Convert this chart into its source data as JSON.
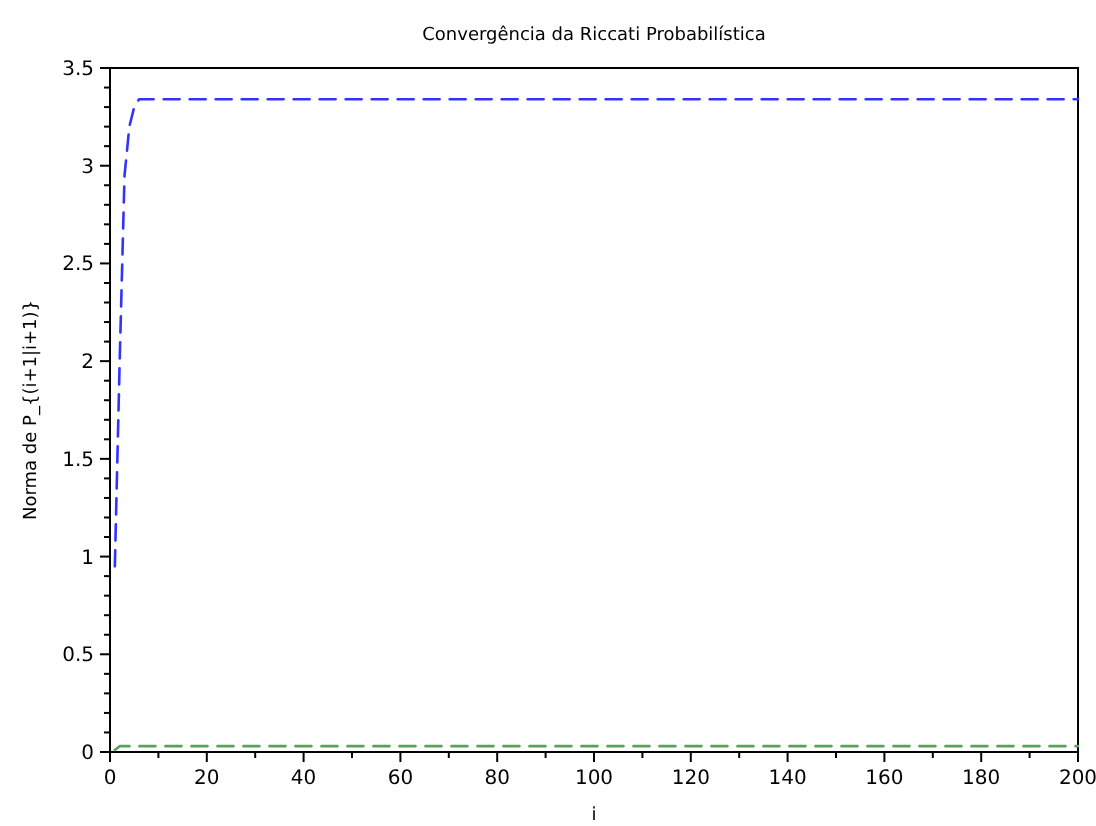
{
  "chart_data": {
    "type": "line",
    "title": "Convergência da Riccati Probabilística",
    "xlabel": "i",
    "ylabel": "Norma de P_{(i+1|i+1)}",
    "series": [
      {
        "color": "#3333ff",
        "x": [
          1,
          2,
          3,
          4,
          5,
          6,
          200
        ],
        "values": [
          0.95,
          2.0,
          2.95,
          3.2,
          3.3,
          3.34,
          3.34
        ]
      },
      {
        "color": "#5aa05a",
        "x": [
          1,
          2,
          200
        ],
        "values": [
          0.01,
          0.03,
          0.03
        ]
      }
    ],
    "xlim": [
      0,
      200
    ],
    "ylim": [
      0,
      3.5
    ],
    "xticks": [
      0,
      {
        "value": 10,
        "label": null
      },
      20,
      {
        "value": 30,
        "label": null
      },
      40,
      {
        "value": 50,
        "label": null
      },
      60,
      {
        "value": 70,
        "label": null
      },
      80,
      {
        "value": 90,
        "label": null
      },
      100,
      {
        "value": 110,
        "label": null
      },
      120,
      {
        "value": 130,
        "label": null
      },
      140,
      {
        "value": 150,
        "label": null
      },
      160,
      {
        "value": 170,
        "label": null
      },
      180,
      {
        "value": 190,
        "label": null
      },
      200
    ],
    "yticks": [
      0,
      {
        "value": 0.1,
        "label": null
      },
      {
        "value": 0.2,
        "label": null
      },
      {
        "value": 0.3,
        "label": null
      },
      {
        "value": 0.4,
        "label": null
      },
      0.5,
      {
        "value": 0.6,
        "label": null
      },
      {
        "value": 0.7,
        "label": null
      },
      {
        "value": 0.8,
        "label": null
      },
      {
        "value": 0.9,
        "label": null
      },
      1,
      {
        "value": 1.1,
        "label": null
      },
      {
        "value": 1.2,
        "label": null
      },
      {
        "value": 1.3,
        "label": null
      },
      {
        "value": 1.4,
        "label": null
      },
      1.5,
      {
        "value": 1.6,
        "label": null
      },
      {
        "value": 1.7,
        "label": null
      },
      {
        "value": 1.8,
        "label": null
      },
      {
        "value": 1.9,
        "label": null
      },
      2,
      {
        "value": 2.1,
        "label": null
      },
      {
        "value": 2.2,
        "label": null
      },
      {
        "value": 2.3,
        "label": null
      },
      {
        "value": 2.4,
        "label": null
      },
      2.5,
      {
        "value": 2.6,
        "label": null
      },
      {
        "value": 2.7,
        "label": null
      },
      {
        "value": 2.8,
        "label": null
      },
      {
        "value": 2.9,
        "label": null
      },
      3,
      {
        "value": 3.1,
        "label": null
      },
      {
        "value": 3.2,
        "label": null
      },
      {
        "value": 3.3,
        "label": null
      },
      {
        "value": 3.4,
        "label": null
      },
      3.5
    ],
    "line_style": "dashed",
    "marker": "none",
    "grid": false
  }
}
